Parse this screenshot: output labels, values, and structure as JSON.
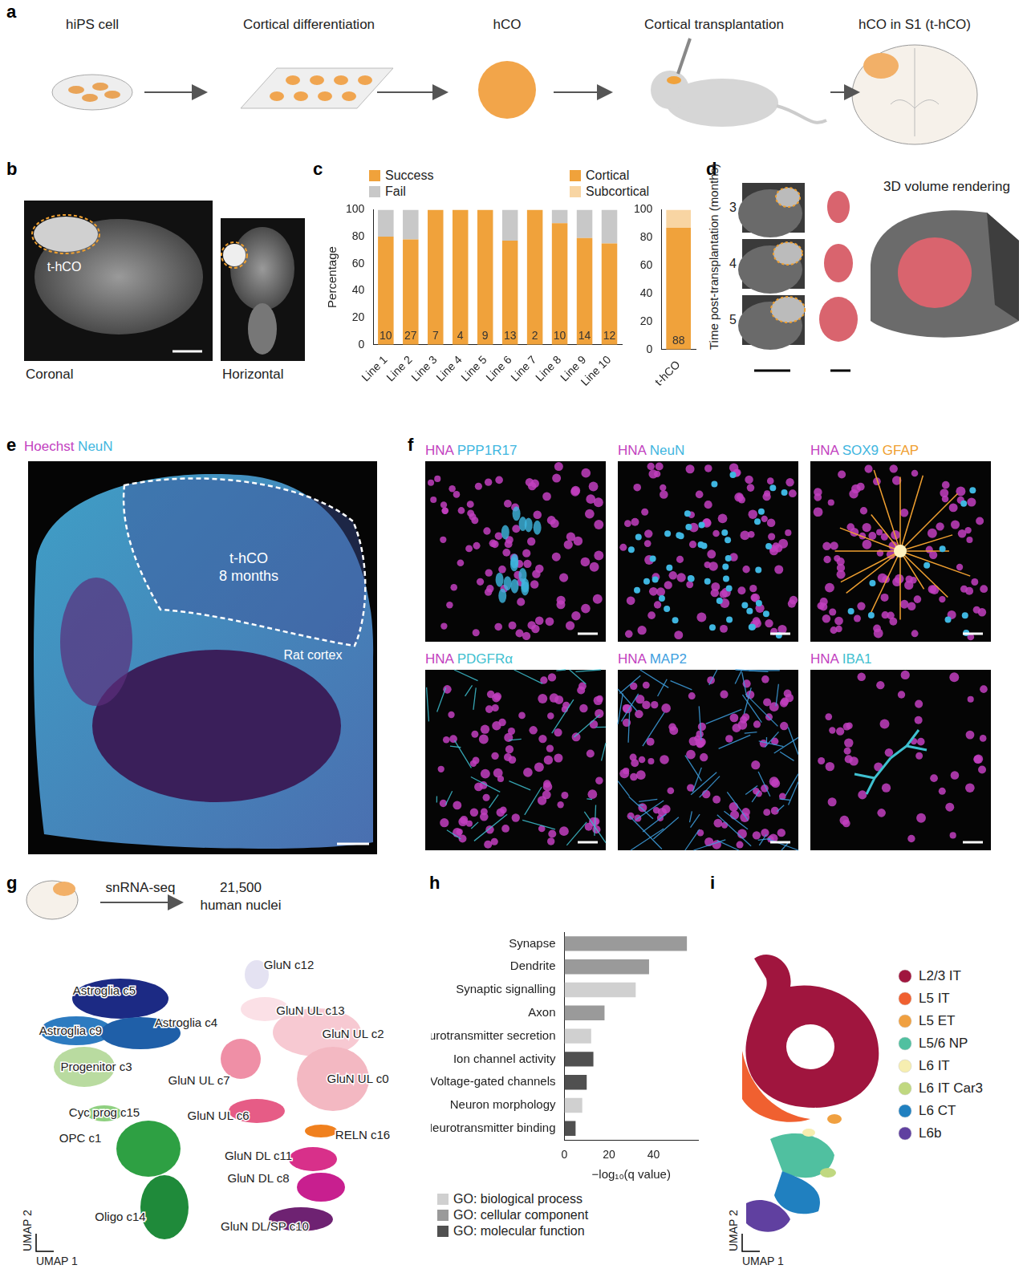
{
  "figure": {
    "a": {
      "letter": "a",
      "steps": [
        "hiPS cell",
        "Cortical differentiation",
        "hCO",
        "Cortical transplantation",
        "hCO in S1 (t-hCO)"
      ]
    },
    "b": {
      "letter": "b",
      "graft": "t-hCO",
      "views": [
        "Coronal",
        "Horizontal"
      ]
    },
    "c": {
      "letter": "c"
    },
    "d": {
      "letter": "d",
      "axis_label": "Time post-transplantation (months)",
      "months": [
        "3",
        "4",
        "5"
      ],
      "rendering": "3D volume rendering"
    },
    "e": {
      "letter": "e",
      "stains": [
        {
          "text": "Hoechst",
          "color": "#c23fc0"
        },
        {
          "text": "NeuN",
          "color": "#3fb6e0"
        }
      ],
      "graft": "t-hCO",
      "age": "8 months",
      "host": "Rat cortex"
    },
    "f": {
      "letter": "f",
      "tiles": [
        {
          "stains": [
            {
              "text": "HNA",
              "color": "#c23fc0"
            },
            {
              "text": "PPP1R17",
              "color": "#3fb6e0"
            }
          ]
        },
        {
          "stains": [
            {
              "text": "HNA",
              "color": "#c23fc0"
            },
            {
              "text": "NeuN",
              "color": "#3fb6e0"
            }
          ]
        },
        {
          "stains": [
            {
              "text": "HNA",
              "color": "#c23fc0"
            },
            {
              "text": "SOX9",
              "color": "#3fb6e0"
            },
            {
              "text": "GFAP",
              "color": "#f0a030"
            }
          ]
        },
        {
          "stains": [
            {
              "text": "HNA",
              "color": "#c23fc0"
            },
            {
              "text": "PDGFRα",
              "color": "#3fc0d0"
            }
          ]
        },
        {
          "stains": [
            {
              "text": "HNA",
              "color": "#c23fc0"
            },
            {
              "text": "MAP2",
              "color": "#3fa0e0"
            }
          ]
        },
        {
          "stains": [
            {
              "text": "HNA",
              "color": "#c23fc0"
            },
            {
              "text": "IBA1",
              "color": "#3fc0d0"
            }
          ]
        }
      ]
    },
    "g": {
      "letter": "g",
      "method": "snRNA-seq",
      "count": [
        "21,500",
        "human nuclei"
      ],
      "x_axis": "UMAP 1",
      "y_axis": "UMAP 2",
      "clusters": [
        {
          "label": "Astroglia c5",
          "color": "#1c2a84"
        },
        {
          "label": "Astroglia c9",
          "color": "#2d7bc0"
        },
        {
          "label": "Astroglia c4",
          "color": "#1f5fa8"
        },
        {
          "label": "Progenitor c3",
          "color": "#b9dba0"
        },
        {
          "label": "Cyc prog c15",
          "color": "#8fd080"
        },
        {
          "label": "OPC c1",
          "color": "#2ea043"
        },
        {
          "label": "Oligo c14",
          "color": "#1f8a3a"
        },
        {
          "label": "GluN c12",
          "color": "#e4e2f2"
        },
        {
          "label": "GluN UL c13",
          "color": "#fbe0e6"
        },
        {
          "label": "GluN UL c2",
          "color": "#f7c9d2"
        },
        {
          "label": "GluN UL c0",
          "color": "#f3b8c2"
        },
        {
          "label": "GluN UL c7",
          "color": "#ef8fa6"
        },
        {
          "label": "GluN UL c6",
          "color": "#e65c86"
        },
        {
          "label": "RELN c16",
          "color": "#f0801e"
        },
        {
          "label": "GluN DL c11",
          "color": "#d8308a"
        },
        {
          "label": "GluN DL c8",
          "color": "#c81f8f"
        },
        {
          "label": "GluN DL/SP c10",
          "color": "#6e2272"
        }
      ]
    },
    "h": {
      "letter": "h"
    },
    "i": {
      "letter": "i",
      "x_axis": "UMAP 1",
      "y_axis": "UMAP 2",
      "types": [
        {
          "label": "L2/3 IT",
          "color": "#a0153e"
        },
        {
          "label": "L5 IT",
          "color": "#f06030"
        },
        {
          "label": "L5 ET",
          "color": "#f0a040"
        },
        {
          "label": "L5/6 NP",
          "color": "#50c0a0"
        },
        {
          "label": "L6 IT",
          "color": "#f6eeb0"
        },
        {
          "label": "L6 IT Car3",
          "color": "#c0d880"
        },
        {
          "label": "L6 CT",
          "color": "#2080c0"
        },
        {
          "label": "L6b",
          "color": "#6040a0"
        }
      ]
    }
  },
  "chart_data": [
    {
      "type": "bar",
      "stacked": true,
      "legend": "top",
      "grid": false,
      "categories": [
        "Line 1",
        "Line 2",
        "Line 3",
        "Line 4",
        "Line 5",
        "Line 6",
        "Line 7",
        "Line 8",
        "Line 9",
        "Line 10"
      ],
      "series": [
        {
          "name": "Success",
          "color": "#f0a23b",
          "values": [
            80,
            78,
            100,
            100,
            100,
            77,
            100,
            90,
            79,
            75
          ]
        },
        {
          "name": "Fail",
          "color": "#c8c8c8",
          "values": [
            20,
            22,
            0,
            0,
            0,
            23,
            0,
            10,
            21,
            25
          ]
        }
      ],
      "n": [
        10,
        27,
        7,
        4,
        9,
        13,
        2,
        10,
        14,
        12
      ],
      "ylabel": "Percentage",
      "ylim": [
        0,
        100
      ],
      "yticks": [
        0,
        20,
        40,
        60,
        80,
        100
      ]
    },
    {
      "type": "bar",
      "stacked": true,
      "legend": "top",
      "grid": false,
      "categories": [
        "t-hCO"
      ],
      "series": [
        {
          "name": "Cortical",
          "color": "#f0a23b",
          "values": [
            87
          ]
        },
        {
          "name": "Subcortical",
          "color": "#f8d5a3",
          "values": [
            13
          ]
        }
      ],
      "n": [
        88
      ],
      "ylim": [
        0,
        100
      ],
      "yticks": [
        0,
        20,
        40,
        60,
        80,
        100
      ]
    },
    {
      "type": "bar",
      "orientation": "horizontal",
      "stacked": true,
      "legend": "bottom",
      "grid": false,
      "categories": [
        "Synapse",
        "Dendrite",
        "Synaptic signalling",
        "Axon",
        "Neurotransmitter secretion",
        "Ion channel activity",
        "Voltage-gated channels",
        "Neuron morphology",
        "Neurotransmitter binding"
      ],
      "series": [
        {
          "name": "GO: biological process",
          "color": "#d0d0d0",
          "values": [
            null,
            null,
            32,
            null,
            12,
            null,
            null,
            8,
            null
          ]
        },
        {
          "name": "GO: cellular component",
          "color": "#9a9a9a",
          "values": [
            55,
            38,
            null,
            18,
            null,
            null,
            null,
            null,
            null
          ]
        },
        {
          "name": "GO: molecular function",
          "color": "#505050",
          "values": [
            null,
            null,
            null,
            null,
            null,
            13,
            10,
            null,
            5
          ]
        }
      ],
      "xlabel": "−log₁₀(q value)",
      "xlim": [
        0,
        60
      ],
      "xticks": [
        0,
        20,
        40
      ]
    }
  ]
}
